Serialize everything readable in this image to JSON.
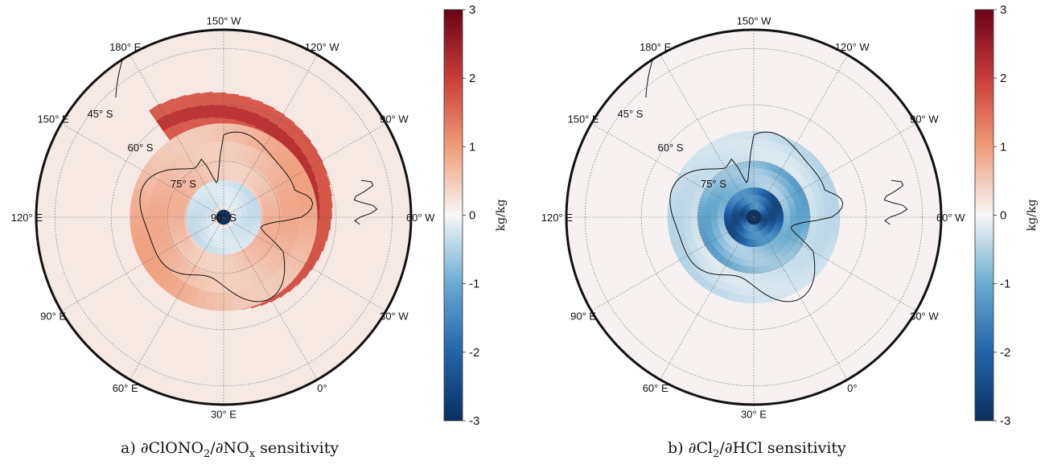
{
  "figure": {
    "panels": [
      {
        "caption": {
          "letter": "a)",
          "numerator": "∂ClONO",
          "numerator_sub": "2",
          "denominator": "∂NO",
          "denominator_sub": "x",
          "suffix": "sensitivity"
        },
        "chart_data": {
          "type": "heatmap",
          "projection": "south-polar-stereographic",
          "description_field": "sensitivity field",
          "colorbar": {
            "label": "kg/kg",
            "range": [
              -3,
              3
            ],
            "ticks": [
              3,
              2,
              1,
              0,
              -1,
              -2,
              -3
            ],
            "colormap": "diverging blue-white-red"
          },
          "longitude_labels": [
            "150° W",
            "120° W",
            "90° W",
            "60° W",
            "30° W",
            "0°",
            "30° E",
            "60° E",
            "90° E",
            "120° E",
            "150° E",
            "180° E"
          ],
          "latitude_labels": [
            "45° S",
            "60° S",
            "75° S",
            "90° S"
          ],
          "grid": true,
          "pole_value": -3,
          "background_value": 0.15,
          "features": [
            {
              "kind": "spiral-band",
              "value": 2.3,
              "lat_start": -76,
              "lat_end": -60,
              "lon_start": 145,
              "sweep": 330
            },
            {
              "kind": "ring",
              "value": 1.0,
              "lat_min": -84,
              "lat_max": -65
            },
            {
              "kind": "inner-negative",
              "value": -0.4,
              "lat_min": -87,
              "lat_max": -80
            }
          ]
        }
      },
      {
        "caption": {
          "letter": "b)",
          "numerator": "∂Cl",
          "numerator_sub": "2",
          "denominator": "∂HCl",
          "denominator_sub": "",
          "suffix": "sensitivity"
        },
        "chart_data": {
          "type": "heatmap",
          "projection": "south-polar-stereographic",
          "colorbar": {
            "label": "kg/kg",
            "range": [
              -3,
              3
            ],
            "ticks": [
              3,
              2,
              1,
              0,
              -1,
              -2,
              -3
            ],
            "colormap": "diverging blue-white-red"
          },
          "longitude_labels": [
            "150° W",
            "120° W",
            "90° W",
            "60° W",
            "30° W",
            "0°",
            "30° E",
            "60° E",
            "90° E",
            "120° E",
            "150° E",
            "180° E"
          ],
          "latitude_labels": [
            "45° S",
            "60° S",
            "75° S"
          ],
          "grid": true,
          "pole_value": -3,
          "background_value": 0.05,
          "features": [
            {
              "kind": "polar-cap",
              "value": -2.6,
              "lat_min": -90,
              "lat_max": -82
            },
            {
              "kind": "ring",
              "value": -1.3,
              "lat_min": -82,
              "lat_max": -75
            },
            {
              "kind": "ring",
              "value": -0.5,
              "lat_min": -75,
              "lat_max": -67
            }
          ]
        }
      }
    ]
  }
}
